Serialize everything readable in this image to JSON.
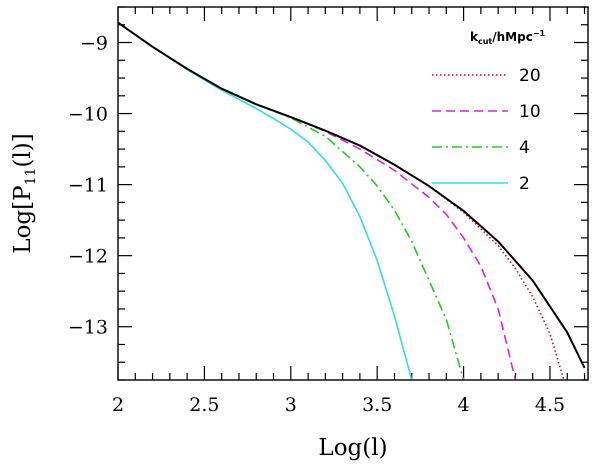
{
  "chart_data": {
    "type": "line",
    "xlabel": "Log(l)",
    "ylabel_main": "Log[P",
    "ylabel_sub": "11",
    "ylabel_end": "(l)]",
    "xlim": [
      2.0,
      4.72
    ],
    "ylim": [
      -13.75,
      -8.5
    ],
    "x_ticks": [
      2,
      2.5,
      3,
      3.5,
      4,
      4.5
    ],
    "x_tick_labels": [
      "2",
      "2.5",
      "3",
      "3.5",
      "4",
      "4.5"
    ],
    "y_ticks": [
      -9,
      -10,
      -11,
      -12,
      -13
    ],
    "y_tick_labels": [
      "−9",
      "−10",
      "−11",
      "−12",
      "−13"
    ],
    "legend": {
      "title_main": "k",
      "title_sub": "cut",
      "title_rest": "/hMpc",
      "title_sup": "−1",
      "placement": "top-right"
    },
    "series": [
      {
        "label": "",
        "color": "#000000",
        "style": "solid",
        "x": [
          2.0,
          2.2,
          2.4,
          2.6,
          2.8,
          3.0,
          3.2,
          3.4,
          3.6,
          3.8,
          4.0,
          4.2,
          4.4,
          4.6,
          4.7
        ],
        "y": [
          -8.72,
          -9.06,
          -9.37,
          -9.65,
          -9.87,
          -10.05,
          -10.24,
          -10.45,
          -10.72,
          -11.02,
          -11.37,
          -11.8,
          -12.35,
          -13.08,
          -13.58
        ]
      },
      {
        "label": "20",
        "color": "#cc1111",
        "style": "dotted",
        "x": [
          2.0,
          2.2,
          2.4,
          2.6,
          2.8,
          3.0,
          3.2,
          3.4,
          3.6,
          3.8,
          4.0,
          4.2,
          4.3,
          4.4,
          4.5,
          4.58
        ],
        "y": [
          -8.72,
          -9.06,
          -9.37,
          -9.65,
          -9.87,
          -10.05,
          -10.24,
          -10.45,
          -10.72,
          -11.02,
          -11.39,
          -11.86,
          -12.18,
          -12.58,
          -13.1,
          -13.75
        ]
      },
      {
        "label": "10",
        "color": "#dd22dd",
        "style": "dashed",
        "x": [
          2.0,
          2.2,
          2.4,
          2.6,
          2.8,
          3.0,
          3.2,
          3.4,
          3.6,
          3.8,
          3.9,
          4.0,
          4.1,
          4.2,
          4.3
        ],
        "y": [
          -8.72,
          -9.06,
          -9.37,
          -9.65,
          -9.87,
          -10.05,
          -10.25,
          -10.5,
          -10.8,
          -11.18,
          -11.42,
          -11.75,
          -12.15,
          -12.75,
          -13.75
        ]
      },
      {
        "label": "4",
        "color": "#22cc22",
        "style": "dashdot",
        "x": [
          2.0,
          2.2,
          2.4,
          2.6,
          2.8,
          3.0,
          3.2,
          3.4,
          3.5,
          3.6,
          3.7,
          3.8,
          3.9,
          4.0
        ],
        "y": [
          -8.72,
          -9.06,
          -9.37,
          -9.65,
          -9.87,
          -10.06,
          -10.32,
          -10.75,
          -11.02,
          -11.36,
          -11.8,
          -12.35,
          -12.9,
          -13.75
        ]
      },
      {
        "label": "2",
        "color": "#33dddd",
        "style": "solid",
        "x": [
          2.0,
          2.2,
          2.4,
          2.6,
          2.8,
          2.9,
          3.0,
          3.1,
          3.2,
          3.3,
          3.4,
          3.5,
          3.6,
          3.7
        ],
        "y": [
          -8.72,
          -9.06,
          -9.38,
          -9.67,
          -9.93,
          -10.07,
          -10.22,
          -10.4,
          -10.66,
          -10.98,
          -11.45,
          -12.07,
          -12.85,
          -13.75
        ]
      }
    ]
  }
}
